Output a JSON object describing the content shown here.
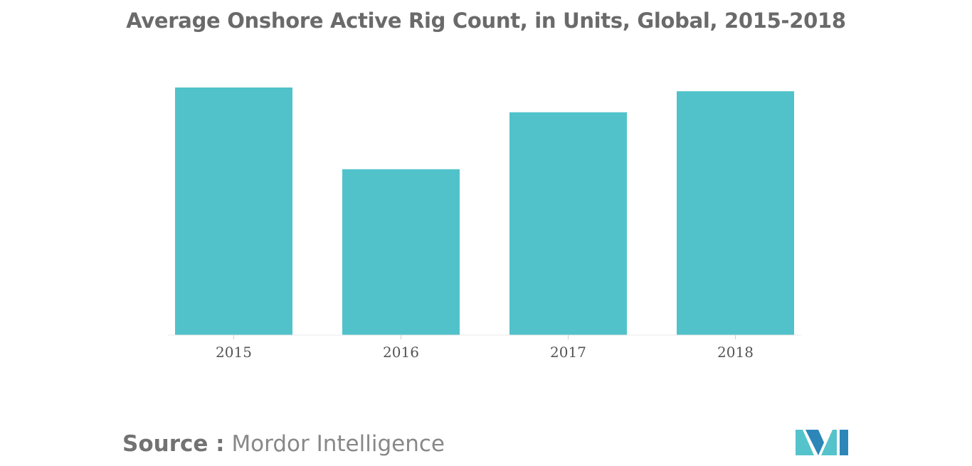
{
  "chart_data": {
    "type": "bar",
    "title": "Average Onshore Active Rig Count, in Units, Global, 2015-2018",
    "categories": [
      "2015",
      "2016",
      "2017",
      "2018"
    ],
    "values": [
      100,
      67,
      90,
      98.5
    ],
    "xlabel": "",
    "ylabel": "",
    "ylim": [
      0,
      100
    ],
    "grid": false,
    "legend": "none",
    "bar_color": "#51c2ca"
  },
  "footer": {
    "source_label": "Source :",
    "source_name": "Mordor Intelligence"
  },
  "logo": {
    "icon": "mordor-intelligence-logo-icon",
    "colors": [
      "#2d86b8",
      "#55c3cb"
    ]
  }
}
